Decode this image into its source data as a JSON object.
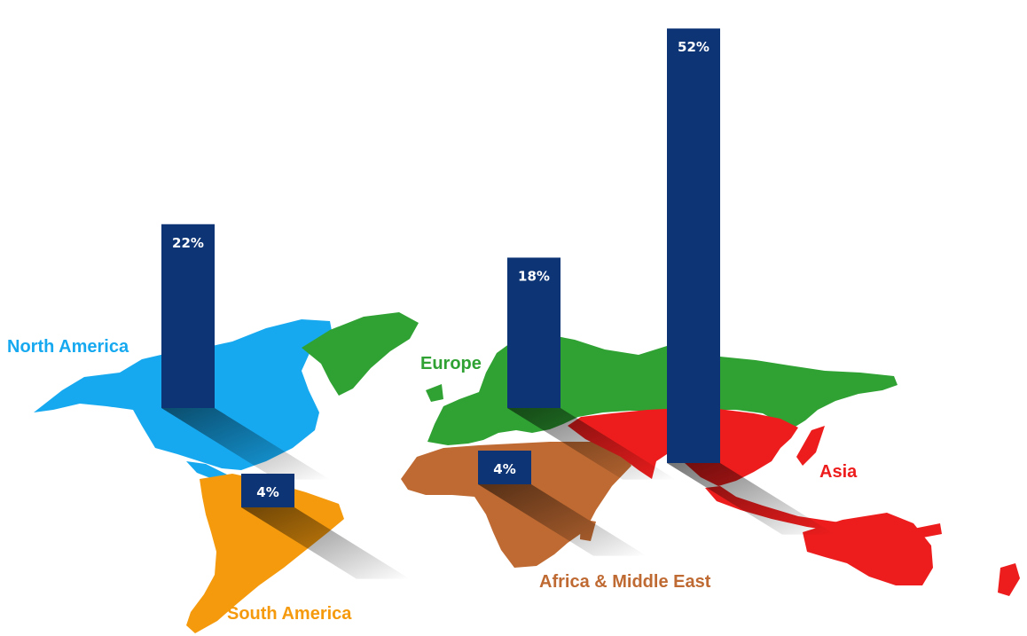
{
  "chart_data": {
    "type": "bar",
    "categories": [
      "North America",
      "South America",
      "Europe",
      "Africa & Middle East",
      "Asia"
    ],
    "values": [
      22,
      4,
      18,
      4,
      52
    ],
    "value_labels": [
      "22%",
      "4%",
      "18%",
      "4%",
      "52%"
    ],
    "unit": "%",
    "region_colors": {
      "North America": "#17a9f0",
      "South America": "#f59a0d",
      "Europe": "#2fa233",
      "Africa & Middle East": "#bf6a32",
      "Asia": "#ee1d1d"
    },
    "bar_color": "#0d3475"
  }
}
